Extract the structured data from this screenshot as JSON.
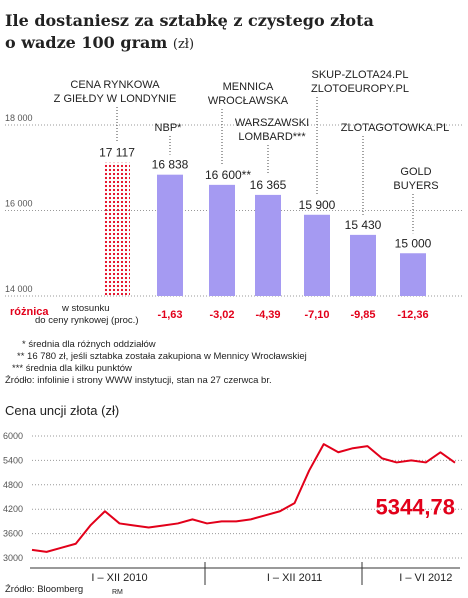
{
  "chart_data": [
    {
      "type": "bar",
      "title": [
        "Ile dostaniesz za sztabkę z czystego złota",
        "o wadze 100 gram"
      ],
      "title_unit": "(zł)",
      "categories": [
        [
          "CENA RYNKOWA",
          "Z GIEŁDY W LONDYNIE"
        ],
        [
          "NBP*"
        ],
        [
          "MENNICA",
          "WROCŁAWSKA"
        ],
        [
          "WARSZAWSKI",
          "LOMBARD***"
        ],
        [
          "SKUP-ZLOTA24.PL",
          "ZLOTOEUROPY.PL"
        ],
        [
          "ZLOTAGOTOWKA.PL"
        ],
        [
          "GOLD",
          "BUYERS"
        ]
      ],
      "values": [
        17117,
        16838,
        16600,
        16365,
        15900,
        15430,
        15000
      ],
      "value_labels": [
        "17 117",
        "16 838",
        "16 600**",
        "16 365",
        "15 900",
        "15 430",
        "15 000"
      ],
      "colors": [
        "#e2001a",
        "#a59af2",
        "#a59af2",
        "#a59af2",
        "#a59af2",
        "#a59af2",
        "#a59af2"
      ],
      "dotted": [
        true,
        false,
        false,
        false,
        false,
        false,
        false
      ],
      "ylim": [
        14000,
        18000
      ],
      "yticks": [
        {
          "value": 14000,
          "label": "14 000"
        },
        {
          "value": 16000,
          "label": "16 000"
        },
        {
          "value": 18000,
          "label": "18 000"
        }
      ],
      "grid": true,
      "difference_label": "różnica",
      "difference_sublabel": [
        "w stosunku",
        "do ceny rynkowej (proc.)"
      ],
      "differences": [
        "-1,63",
        "-3,02",
        "-4,39",
        "-7,10",
        "-9,85",
        "-12,36"
      ],
      "notes": [
        "* średnia dla różnych oddziałów",
        "** 16 780 zł, jeśli sztabka została zakupiona w Mennicy Wrocławskiej",
        "*** średnia dla kilku punktów"
      ],
      "source": "Źródło: infolinie i strony WWW instytucji, stan na 27 czerwca br."
    },
    {
      "type": "line",
      "title": "Cena uncji złota (zł)",
      "categories": [
        null,
        null,
        null,
        null,
        null,
        null,
        "I – XII 2010",
        null,
        null,
        null,
        null,
        null,
        null,
        null,
        null,
        null,
        null,
        null,
        "I – XII 2011",
        null,
        null,
        null,
        null,
        null,
        null,
        null,
        null,
        "I – VI 2012",
        null,
        null
      ],
      "series": [
        {
          "name": "Cena uncji złota",
          "color": "#e2001a",
          "values": [
            3200,
            3150,
            3250,
            3350,
            3800,
            4150,
            3850,
            3800,
            3750,
            3800,
            3850,
            3950,
            3850,
            3900,
            3900,
            3950,
            4050,
            4150,
            4350,
            5150,
            5800,
            5600,
            5700,
            5750,
            5450,
            5350,
            5400,
            5350,
            5600,
            5344.78
          ],
          "value_labels": [
            null,
            null,
            null,
            null,
            null,
            null,
            null,
            null,
            null,
            null,
            null,
            null,
            null,
            null,
            null,
            null,
            null,
            null,
            null,
            null,
            null,
            null,
            null,
            null,
            null,
            null,
            null,
            null,
            null,
            "5344,78"
          ]
        }
      ],
      "ylim": [
        3000,
        6000
      ],
      "yticks": [
        3000,
        3600,
        4200,
        4800,
        5400,
        6000
      ],
      "grid": true,
      "source": "Źródło: Bloomberg",
      "credit": "RM"
    }
  ]
}
